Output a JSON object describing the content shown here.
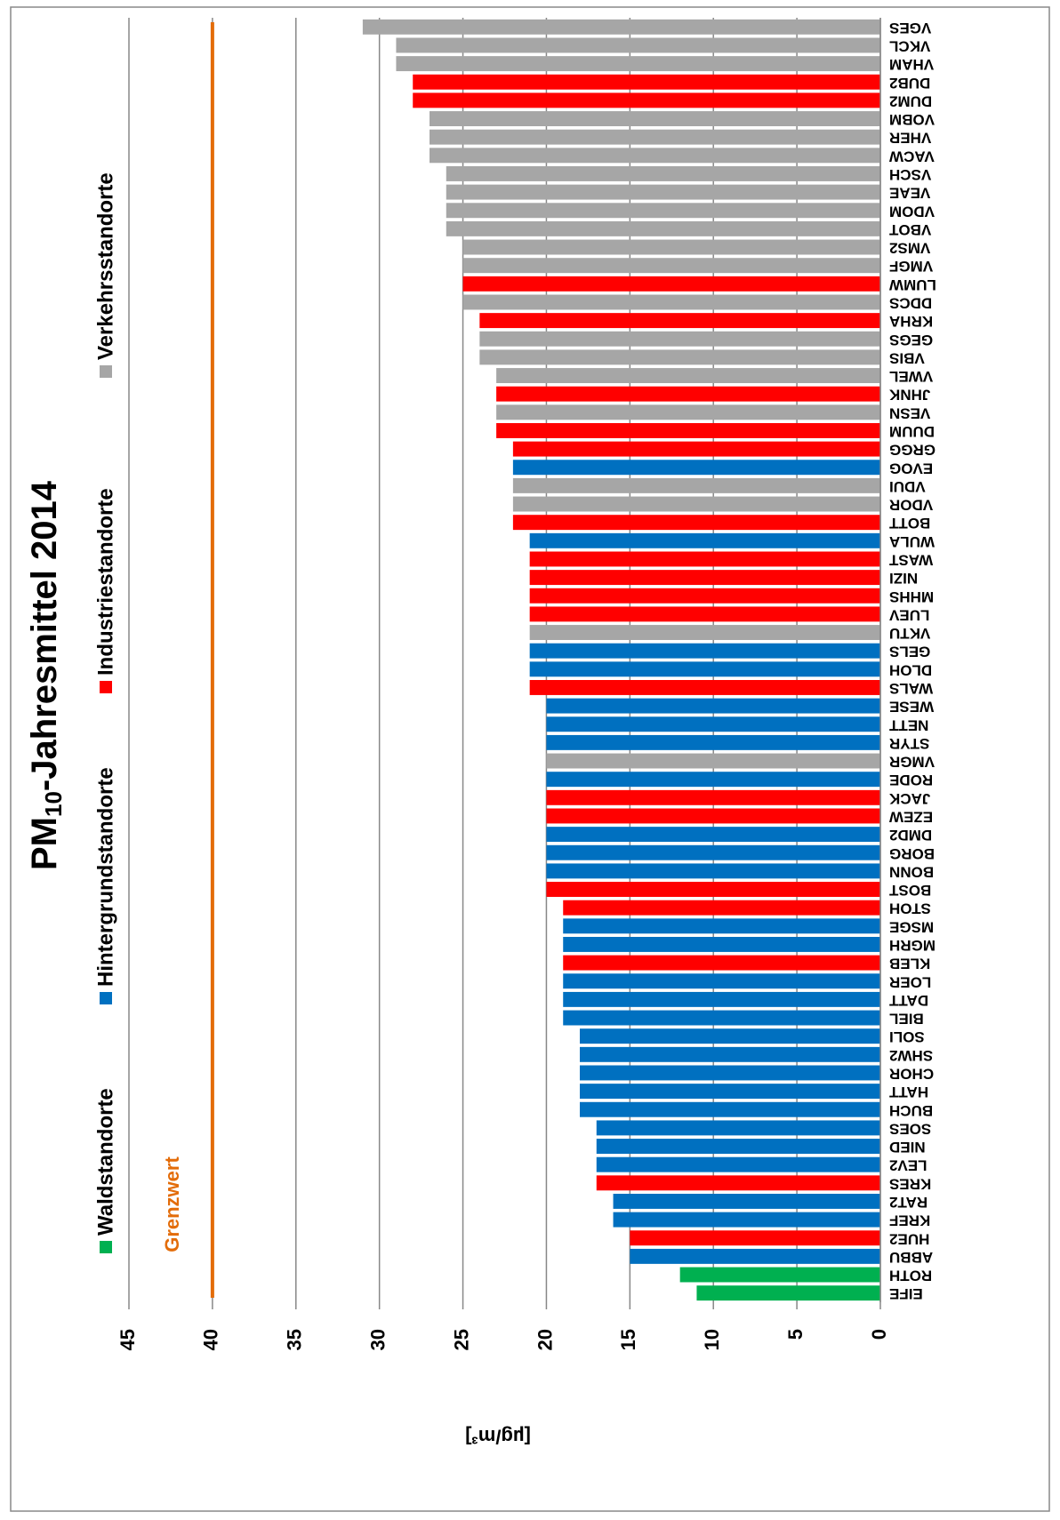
{
  "chart_data": {
    "type": "bar",
    "title": {
      "main": "PM",
      "sub": "10",
      "rest": "-Jahresmittel 2014"
    },
    "y_axis_label": "[µg/m³]",
    "categories": [
      "EIFE",
      "ROTH",
      "ABBU",
      "HUE2",
      "KREF",
      "RAT2",
      "KRES",
      "LEV2",
      "NIED",
      "SOES",
      "BUCH",
      "HATT",
      "CHOR",
      "SHW2",
      "SOLI",
      "BIEL",
      "DATT",
      "LOER",
      "KLEB",
      "MGRH",
      "MSGE",
      "STOH",
      "BOST",
      "BONN",
      "BORG",
      "DMD2",
      "EZEW",
      "JACK",
      "RODE",
      "VMGR",
      "STYR",
      "NETT",
      "WESE",
      "WALS",
      "DLOH",
      "GELS",
      "VKTU",
      "LUEV",
      "MHHS",
      "NIZI",
      "WAST",
      "WULA",
      "BOTT",
      "VDOR",
      "VDUI",
      "EVOG",
      "GRGG",
      "DUUM",
      "VESN",
      "JHNK",
      "VWEL",
      "VBIS",
      "GEGS",
      "KRHA",
      "DDCS",
      "LUMW",
      "VMGF",
      "VMS2",
      "VBOT",
      "VDOM",
      "VEAE",
      "VSCH",
      "VACW",
      "VHER",
      "VOBM",
      "DUM2",
      "DUB2",
      "VHAM",
      "VKCL",
      "VGES"
    ],
    "values": [
      11,
      12,
      15,
      15,
      16,
      16,
      17,
      17,
      17,
      17,
      18,
      18,
      18,
      18,
      18,
      19,
      19,
      19,
      19,
      19,
      19,
      19,
      20,
      20,
      20,
      20,
      20,
      20,
      20,
      20,
      20,
      20,
      20,
      21,
      21,
      21,
      21,
      21,
      21,
      21,
      21,
      21,
      22,
      22,
      22,
      22,
      22,
      23,
      23,
      23,
      23,
      24,
      24,
      24,
      25,
      25,
      25,
      25,
      26,
      26,
      26,
      26,
      27,
      27,
      27,
      28,
      28,
      29,
      29,
      31
    ],
    "colors": [
      "#00b050",
      "#00b050",
      "#0070c0",
      "#ff0000",
      "#0070c0",
      "#0070c0",
      "#ff0000",
      "#0070c0",
      "#0070c0",
      "#0070c0",
      "#0070c0",
      "#0070c0",
      "#0070c0",
      "#0070c0",
      "#0070c0",
      "#0070c0",
      "#0070c0",
      "#0070c0",
      "#ff0000",
      "#0070c0",
      "#0070c0",
      "#ff0000",
      "#ff0000",
      "#0070c0",
      "#0070c0",
      "#0070c0",
      "#ff0000",
      "#ff0000",
      "#0070c0",
      "#a6a6a6",
      "#0070c0",
      "#0070c0",
      "#0070c0",
      "#ff0000",
      "#0070c0",
      "#0070c0",
      "#a6a6a6",
      "#ff0000",
      "#ff0000",
      "#ff0000",
      "#ff0000",
      "#0070c0",
      "#ff0000",
      "#a6a6a6",
      "#a6a6a6",
      "#0070c0",
      "#ff0000",
      "#ff0000",
      "#a6a6a6",
      "#ff0000",
      "#a6a6a6",
      "#a6a6a6",
      "#a6a6a6",
      "#ff0000",
      "#a6a6a6",
      "#ff0000",
      "#a6a6a6",
      "#a6a6a6",
      "#a6a6a6",
      "#a6a6a6",
      "#a6a6a6",
      "#a6a6a6",
      "#a6a6a6",
      "#a6a6a6",
      "#a6a6a6",
      "#ff0000",
      "#ff0000",
      "#a6a6a6",
      "#a6a6a6",
      "#a6a6a6"
    ],
    "legend": [
      {
        "name": "Waldstandorte",
        "color": "#00b050"
      },
      {
        "name": "Hintergrundstandorte",
        "color": "#0070c0"
      },
      {
        "name": "Industriestandorte",
        "color": "#ff0000"
      },
      {
        "name": "Verkehrsstandorte",
        "color": "#a6a6a6"
      }
    ],
    "limit": {
      "value": 40,
      "label": "Grenzwert",
      "color": "#e36c09"
    },
    "ylim": [
      0,
      45
    ],
    "yticks": [
      0,
      5,
      10,
      15,
      20,
      25,
      30,
      35,
      40,
      45
    ],
    "grid": true
  }
}
